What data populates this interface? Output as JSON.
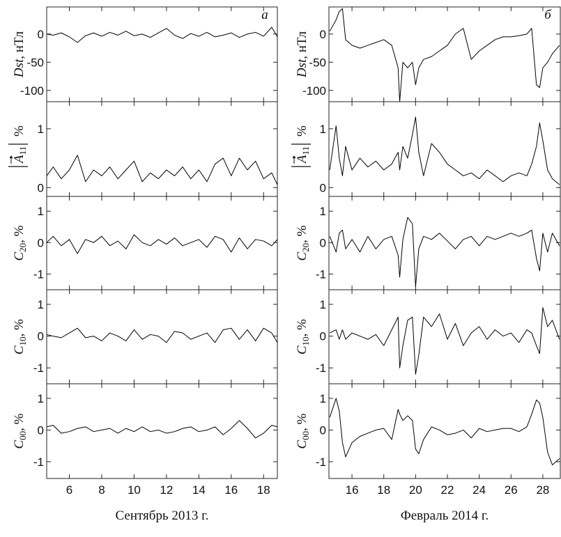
{
  "chart_data": [
    {
      "type": "line",
      "annotation": "а",
      "ylabel": "Dst",
      "ylabel_unit": ", нТл",
      "color": "#000000",
      "xlim": [
        4.6,
        18.85
      ],
      "xticks": [
        6,
        8,
        10,
        12,
        14,
        16,
        18
      ],
      "ylim": [
        -120,
        48
      ],
      "yticks": [
        -100,
        -50,
        0
      ],
      "x": [
        4.6,
        5,
        5.5,
        6,
        6.5,
        7,
        7.5,
        8,
        8.5,
        9,
        9.5,
        10,
        10.5,
        11,
        11.5,
        12,
        12.5,
        13,
        13.5,
        14,
        14.5,
        15,
        15.5,
        16,
        16.5,
        17,
        17.5,
        18,
        18.5,
        18.85
      ],
      "values": [
        0,
        -2,
        2,
        -5,
        -15,
        -3,
        2,
        -4,
        3,
        -2,
        5,
        -3,
        0,
        -6,
        2,
        10,
        -2,
        -8,
        1,
        -4,
        3,
        -5,
        -2,
        2,
        -6,
        0,
        3,
        -4,
        12,
        -5
      ]
    },
    {
      "type": "line",
      "ylabel": "A",
      "ylabel_sub": "11",
      "ylabel_unit": "%",
      "color": "#000000",
      "xlim": [
        4.6,
        18.85
      ],
      "xticks": [
        6,
        8,
        10,
        12,
        14,
        16,
        18
      ],
      "ylim": [
        -0.15,
        1.46
      ],
      "yticks": [
        0,
        1
      ],
      "x": [
        4.6,
        5,
        5.5,
        6,
        6.5,
        7,
        7.5,
        8,
        8.5,
        9,
        9.5,
        10,
        10.5,
        11,
        11.5,
        12,
        12.5,
        13,
        13.5,
        14,
        14.5,
        15,
        15.5,
        16,
        16.5,
        17,
        17.5,
        18,
        18.5,
        18.85
      ],
      "values": [
        0.2,
        0.35,
        0.15,
        0.3,
        0.55,
        0.1,
        0.3,
        0.2,
        0.35,
        0.15,
        0.3,
        0.45,
        0.1,
        0.25,
        0.15,
        0.3,
        0.2,
        0.35,
        0.15,
        0.3,
        0.1,
        0.4,
        0.5,
        0.2,
        0.5,
        0.3,
        0.45,
        0.15,
        0.25,
        0.05
      ]
    },
    {
      "type": "line",
      "ylabel": "C",
      "ylabel_sub": "20",
      "ylabel_unit": ", %",
      "color": "#000000",
      "xlim": [
        4.6,
        18.85
      ],
      "xticks": [
        6,
        8,
        10,
        12,
        14,
        16,
        18
      ],
      "ylim": [
        -1.5,
        1.47
      ],
      "yticks": [
        -1,
        0,
        1
      ],
      "x": [
        4.6,
        5,
        5.5,
        6,
        6.5,
        7,
        7.5,
        8,
        8.5,
        9,
        9.5,
        10,
        10.5,
        11,
        11.5,
        12,
        12.5,
        13,
        13.5,
        14,
        14.5,
        15,
        15.5,
        16,
        16.5,
        17,
        17.5,
        18,
        18.5,
        18.85
      ],
      "values": [
        0,
        0.2,
        -0.1,
        0.1,
        -0.35,
        0.1,
        0,
        0.2,
        -0.1,
        0.05,
        -0.2,
        0.25,
        0,
        -0.1,
        0.1,
        -0.05,
        0.15,
        -0.1,
        0,
        0.1,
        -0.15,
        0.2,
        0.1,
        -0.3,
        0.15,
        -0.2,
        0.1,
        0.05,
        -0.1,
        0.1
      ]
    },
    {
      "type": "line",
      "ylabel": "C",
      "ylabel_sub": "10",
      "ylabel_unit": ", %",
      "color": "#000000",
      "xlim": [
        4.6,
        18.85
      ],
      "xticks": [
        6,
        8,
        10,
        12,
        14,
        16,
        18
      ],
      "ylim": [
        -1.5,
        1.46
      ],
      "yticks": [
        -1,
        0,
        1
      ],
      "x": [
        4.6,
        5,
        5.5,
        6,
        6.5,
        7,
        7.5,
        8,
        8.5,
        9,
        9.5,
        10,
        10.5,
        11,
        11.5,
        12,
        12.5,
        13,
        13.5,
        14,
        14.5,
        15,
        15.5,
        16,
        16.5,
        17,
        17.5,
        18,
        18.5,
        18.85
      ],
      "values": [
        0.05,
        0,
        -0.05,
        0.1,
        0.25,
        -0.05,
        0,
        -0.15,
        0.1,
        0,
        -0.15,
        0.2,
        -0.1,
        0.05,
        0,
        -0.2,
        0.15,
        0.1,
        -0.1,
        0,
        0.1,
        -0.2,
        0.2,
        0.25,
        -0.1,
        0.2,
        -0.15,
        0.25,
        0.1,
        -0.2
      ]
    },
    {
      "type": "line",
      "ylabel": "C",
      "ylabel_sub": "00",
      "ylabel_unit": ", %",
      "xlabel": "Сентябрь 2013 г.",
      "color": "#000000",
      "xlim": [
        4.6,
        18.85
      ],
      "xticks": [
        6,
        8,
        10,
        12,
        14,
        16,
        18
      ],
      "ylim": [
        -1.53,
        1.46
      ],
      "yticks": [
        -1,
        0,
        1
      ],
      "x": [
        4.6,
        5,
        5.5,
        6,
        6.5,
        7,
        7.5,
        8,
        8.5,
        9,
        9.5,
        10,
        10.5,
        11,
        11.5,
        12,
        12.5,
        13,
        13.5,
        14,
        14.5,
        15,
        15.5,
        16,
        16.5,
        17,
        17.5,
        18,
        18.5,
        18.85
      ],
      "values": [
        0.1,
        0.15,
        -0.1,
        -0.05,
        0.05,
        0.1,
        -0.05,
        0,
        0.05,
        -0.1,
        0.05,
        -0.05,
        0.1,
        -0.05,
        0,
        -0.1,
        -0.05,
        0.05,
        0.1,
        -0.05,
        0,
        0.1,
        -0.15,
        0.05,
        0.3,
        0.05,
        -0.25,
        -0.1,
        0.15,
        0.1
      ]
    },
    {
      "type": "line",
      "annotation": "б",
      "ylabel": "Dst",
      "ylabel_unit": ", нТл",
      "color": "#000000",
      "xlim": [
        14.55,
        29.1
      ],
      "xticks": [
        16,
        18,
        20,
        22,
        24,
        26,
        28
      ],
      "ylim": [
        -120,
        48
      ],
      "yticks": [
        -100,
        -50,
        0
      ],
      "x": [
        14.6,
        15,
        15.2,
        15.4,
        15.6,
        16,
        16.5,
        17,
        17.5,
        18,
        18.5,
        18.9,
        19,
        19.2,
        19.5,
        19.8,
        20,
        20.2,
        20.5,
        21,
        21.5,
        22,
        22.5,
        23,
        23.5,
        24,
        24.5,
        25,
        25.5,
        26,
        26.5,
        27,
        27.3,
        27.6,
        27.8,
        28,
        28.3,
        28.6,
        29.05
      ],
      "values": [
        5,
        25,
        40,
        45,
        -10,
        -20,
        -25,
        -20,
        -15,
        -10,
        -20,
        -60,
        -120,
        -50,
        -60,
        -50,
        -90,
        -60,
        -45,
        -40,
        -30,
        -20,
        0,
        10,
        -45,
        -30,
        -20,
        -10,
        -5,
        -5,
        -3,
        0,
        10,
        -90,
        -95,
        -60,
        -50,
        -35,
        -20
      ]
    },
    {
      "type": "line",
      "ylabel": "A",
      "ylabel_sub": "11",
      "ylabel_unit": "%",
      "color": "#000000",
      "xlim": [
        14.55,
        29.1
      ],
      "xticks": [
        16,
        18,
        20,
        22,
        24,
        26,
        28
      ],
      "ylim": [
        -0.15,
        1.46
      ],
      "yticks": [
        0,
        1
      ],
      "x": [
        14.6,
        15,
        15.2,
        15.4,
        15.6,
        16,
        16.5,
        17,
        17.5,
        18,
        18.5,
        18.9,
        19,
        19.2,
        19.5,
        19.8,
        20,
        20.2,
        20.5,
        21,
        21.5,
        22,
        22.5,
        23,
        23.5,
        24,
        24.5,
        25,
        25.5,
        26,
        26.5,
        27,
        27.3,
        27.6,
        27.8,
        28,
        28.3,
        28.6,
        29.05
      ],
      "values": [
        0.3,
        1.05,
        0.5,
        0.2,
        0.7,
        0.3,
        0.5,
        0.35,
        0.45,
        0.3,
        0.4,
        0.6,
        0.3,
        0.7,
        0.5,
        0.9,
        1.2,
        0.6,
        0.2,
        0.75,
        0.6,
        0.4,
        0.3,
        0.2,
        0.25,
        0.15,
        0.3,
        0.2,
        0.1,
        0.2,
        0.25,
        0.2,
        0.4,
        0.7,
        1.1,
        0.8,
        0.3,
        0.15,
        0.05
      ]
    },
    {
      "type": "line",
      "ylabel": "C",
      "ylabel_sub": "20",
      "ylabel_unit": ", %",
      "color": "#000000",
      "xlim": [
        14.55,
        29.1
      ],
      "xticks": [
        16,
        18,
        20,
        22,
        24,
        26,
        28
      ],
      "ylim": [
        -1.5,
        1.47
      ],
      "yticks": [
        -1,
        0,
        1
      ],
      "x": [
        14.6,
        15,
        15.2,
        15.4,
        15.6,
        16,
        16.5,
        17,
        17.5,
        18,
        18.5,
        18.9,
        19,
        19.2,
        19.5,
        19.8,
        20,
        20.2,
        20.5,
        21,
        21.5,
        22,
        22.5,
        23,
        23.5,
        24,
        24.5,
        25,
        25.5,
        26,
        26.5,
        27,
        27.3,
        27.6,
        27.8,
        28,
        28.3,
        28.6,
        29.05
      ],
      "values": [
        0.2,
        -0.3,
        0.3,
        0.4,
        -0.2,
        0.1,
        -0.3,
        0.2,
        -0.2,
        0.1,
        0.2,
        -0.4,
        -1.1,
        0.1,
        0.8,
        0.6,
        -1.4,
        -0.2,
        0.2,
        0.1,
        0.3,
        0.05,
        -0.2,
        0.1,
        0.2,
        -0.1,
        0.2,
        0.1,
        0.2,
        0.3,
        0.2,
        0.3,
        0.4,
        -0.5,
        -0.9,
        0.3,
        -0.3,
        0.3,
        -0.1
      ]
    },
    {
      "type": "line",
      "ylabel": "C",
      "ylabel_sub": "10",
      "ylabel_unit": ", %",
      "color": "#000000",
      "xlim": [
        14.55,
        29.1
      ],
      "xticks": [
        16,
        18,
        20,
        22,
        24,
        26,
        28
      ],
      "ylim": [
        -1.5,
        1.46
      ],
      "yticks": [
        -1,
        0,
        1
      ],
      "x": [
        14.6,
        15,
        15.2,
        15.4,
        15.6,
        16,
        16.5,
        17,
        17.5,
        18,
        18.5,
        18.9,
        19,
        19.2,
        19.5,
        19.8,
        20,
        20.2,
        20.5,
        21,
        21.5,
        22,
        22.5,
        23,
        23.5,
        24,
        24.5,
        25,
        25.5,
        26,
        26.5,
        27,
        27.3,
        27.6,
        27.8,
        28,
        28.3,
        28.6,
        29.05
      ],
      "values": [
        0.1,
        0.2,
        -0.1,
        0.2,
        -0.1,
        0.1,
        0,
        -0.1,
        0.05,
        -0.3,
        0.2,
        0.6,
        -1.0,
        -0.3,
        0.5,
        0.6,
        -1.2,
        -0.6,
        0.6,
        0.3,
        0.7,
        -0.1,
        0.4,
        -0.3,
        0.1,
        0.3,
        -0.1,
        0.2,
        0,
        0.1,
        -0.2,
        0.2,
        0.1,
        -0.3,
        -0.55,
        0.9,
        0.3,
        0.5,
        -0.1
      ]
    },
    {
      "type": "line",
      "ylabel": "C",
      "ylabel_sub": "00",
      "ylabel_unit": ", %",
      "xlabel": "Февраль 2014 г.",
      "color": "#000000",
      "xlim": [
        14.55,
        29.1
      ],
      "xticks": [
        16,
        18,
        20,
        22,
        24,
        26,
        28
      ],
      "ylim": [
        -1.53,
        1.46
      ],
      "yticks": [
        -1,
        0,
        1
      ],
      "x": [
        14.6,
        15,
        15.2,
        15.4,
        15.6,
        16,
        16.5,
        17,
        17.5,
        18,
        18.5,
        18.9,
        19,
        19.2,
        19.5,
        19.8,
        20,
        20.2,
        20.5,
        21,
        21.5,
        22,
        22.5,
        23,
        23.5,
        24,
        24.5,
        25,
        25.5,
        26,
        26.5,
        27,
        27.3,
        27.6,
        27.8,
        28,
        28.3,
        28.6,
        29.05
      ],
      "values": [
        0.4,
        1.0,
        0.6,
        -0.4,
        -0.85,
        -0.4,
        -0.2,
        -0.1,
        0,
        0.05,
        -0.3,
        0.65,
        0.5,
        0.3,
        0.45,
        0.3,
        -0.6,
        -0.75,
        -0.3,
        0.1,
        0,
        -0.15,
        -0.1,
        0,
        -0.25,
        0.05,
        -0.05,
        0,
        0.05,
        0.05,
        -0.05,
        0.1,
        0.5,
        0.95,
        0.85,
        0.4,
        -0.7,
        -1.1,
        -0.9
      ]
    }
  ]
}
